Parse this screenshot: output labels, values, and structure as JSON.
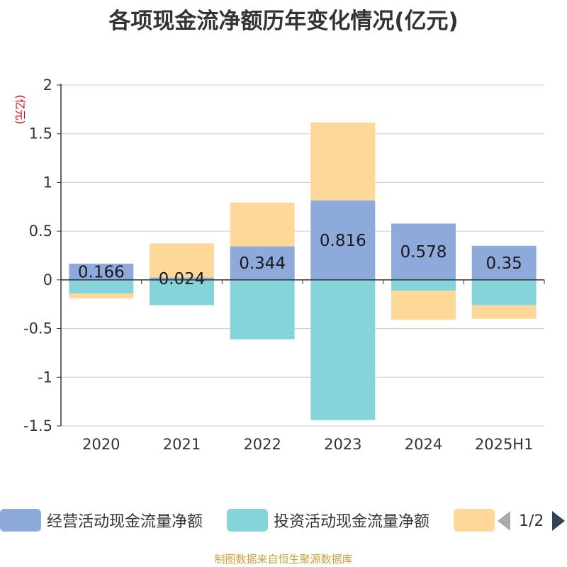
{
  "title": "各项现金流净额历年变化情况(亿元)",
  "unit_label": "(亿元)",
  "source": "制图数据来自恒生聚源数据库",
  "legend": {
    "items": [
      {
        "label": "经营活动现金流量净额",
        "color": "#8eaadb"
      },
      {
        "label": "投资活动现金流量净额",
        "color": "#85d4d9"
      },
      {
        "label": "",
        "color": "#fed898"
      }
    ],
    "pager": "1/2"
  },
  "chart_data": {
    "type": "bar",
    "stacked": true,
    "categories": [
      "2020",
      "2021",
      "2022",
      "2023",
      "2024",
      "2025H1"
    ],
    "ylim": [
      -1.5,
      2
    ],
    "yticks": [
      2,
      1.5,
      1,
      0.5,
      0,
      -0.5,
      -1,
      -1.5
    ],
    "ytick_labels": [
      "2",
      "1.5",
      "1",
      "0.5",
      "0",
      "-0.5",
      "-1",
      "-1.5"
    ],
    "xlabel": "",
    "ylabel": "(亿元)",
    "grid": true,
    "series": [
      {
        "name": "经营活动现金流量净额",
        "color": "#8eaadb",
        "values": [
          0.166,
          0.024,
          0.344,
          0.816,
          0.578,
          0.35
        ],
        "labels": [
          "0.166",
          "0.024",
          "0.344",
          "0.816",
          "0.578",
          "0.35"
        ]
      },
      {
        "name": "投资活动现金流量净额",
        "color": "#85d4d9",
        "values": [
          -0.14,
          -0.26,
          -0.61,
          -1.44,
          -0.11,
          -0.26
        ]
      },
      {
        "name": "",
        "color": "#fed898",
        "values": [
          -0.05,
          0.35,
          0.45,
          0.8,
          -0.3,
          -0.14
        ]
      }
    ]
  }
}
